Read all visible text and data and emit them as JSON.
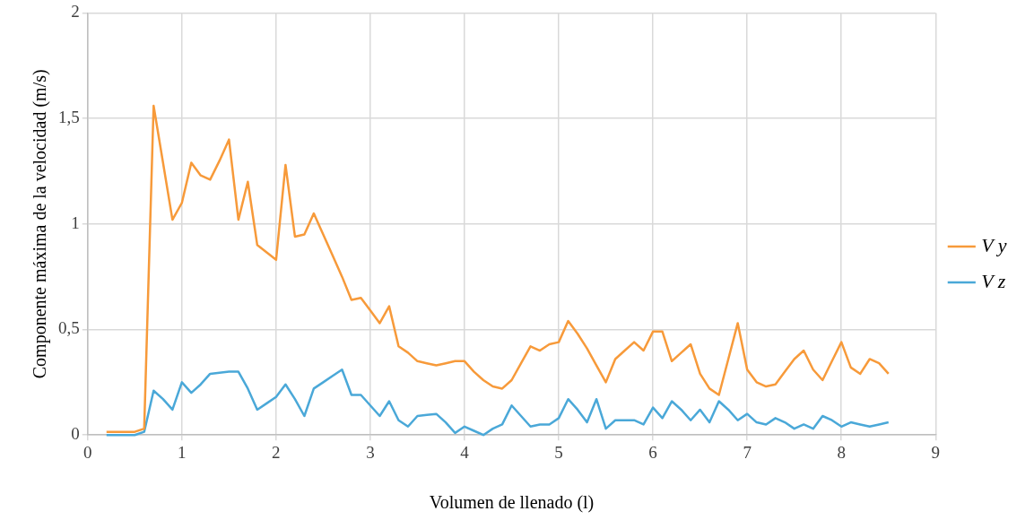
{
  "chart_data": {
    "type": "line",
    "xlabel": "Volumen de llenado (l)",
    "ylabel": "Componente máxima de la velocidad (m/s)",
    "x": [
      0.2,
      0.3,
      0.4,
      0.5,
      0.6,
      0.7,
      0.8,
      0.9,
      1.0,
      1.1,
      1.2,
      1.3,
      1.4,
      1.5,
      1.6,
      1.7,
      1.8,
      1.9,
      2.0,
      2.1,
      2.2,
      2.3,
      2.4,
      2.5,
      2.6,
      2.7,
      2.8,
      2.9,
      3.0,
      3.1,
      3.2,
      3.3,
      3.4,
      3.5,
      3.6,
      3.7,
      3.8,
      3.9,
      4.0,
      4.1,
      4.2,
      4.3,
      4.4,
      4.5,
      4.6,
      4.7,
      4.8,
      4.9,
      5.0,
      5.1,
      5.2,
      5.3,
      5.4,
      5.5,
      5.6,
      5.7,
      5.8,
      5.9,
      6.0,
      6.1,
      6.2,
      6.3,
      6.4,
      6.5,
      6.6,
      6.7,
      6.8,
      6.9,
      7.0,
      7.1,
      7.2,
      7.3,
      7.4,
      7.5,
      7.6,
      7.7,
      7.8,
      7.9,
      8.0,
      8.1,
      8.2,
      8.3,
      8.4,
      8.5
    ],
    "series": [
      {
        "name": "V y",
        "color": "#f79a3a",
        "values": [
          0.015,
          0.015,
          0.015,
          0.015,
          0.03,
          1.56,
          1.29,
          1.02,
          1.1,
          1.29,
          1.23,
          1.21,
          1.3,
          1.4,
          1.02,
          1.2,
          0.9,
          0.865,
          0.83,
          1.28,
          0.94,
          0.95,
          1.05,
          0.95,
          0.85,
          0.75,
          0.64,
          0.65,
          0.59,
          0.53,
          0.61,
          0.42,
          0.39,
          0.35,
          0.34,
          0.33,
          0.34,
          0.35,
          0.35,
          0.3,
          0.26,
          0.23,
          0.22,
          0.26,
          0.34,
          0.42,
          0.4,
          0.43,
          0.44,
          0.54,
          0.48,
          0.41,
          0.33,
          0.25,
          0.36,
          0.4,
          0.44,
          0.4,
          0.49,
          0.49,
          0.35,
          0.39,
          0.43,
          0.29,
          0.22,
          0.19,
          0.36,
          0.53,
          0.31,
          0.25,
          0.23,
          0.24,
          0.3,
          0.36,
          0.4,
          0.31,
          0.26,
          0.35,
          0.44,
          0.32,
          0.29,
          0.36,
          0.34,
          0.29
        ]
      },
      {
        "name": "V z",
        "color": "#4aa8d8",
        "values": [
          0,
          0,
          0,
          0,
          0.015,
          0.21,
          0.17,
          0.12,
          0.25,
          0.2,
          0.24,
          0.29,
          0.295,
          0.3,
          0.3,
          0.22,
          0.12,
          0.15,
          0.18,
          0.24,
          0.17,
          0.09,
          0.22,
          0.25,
          0.28,
          0.31,
          0.19,
          0.19,
          0.14,
          0.09,
          0.16,
          0.07,
          0.04,
          0.09,
          0.095,
          0.1,
          0.06,
          0.01,
          0.04,
          0.02,
          0.0,
          0.03,
          0.05,
          0.14,
          0.09,
          0.04,
          0.05,
          0.05,
          0.08,
          0.17,
          0.12,
          0.06,
          0.17,
          0.03,
          0.07,
          0.07,
          0.07,
          0.05,
          0.13,
          0.08,
          0.16,
          0.12,
          0.07,
          0.12,
          0.06,
          0.16,
          0.12,
          0.07,
          0.1,
          0.06,
          0.05,
          0.08,
          0.06,
          0.03,
          0.05,
          0.03,
          0.09,
          0.07,
          0.04,
          0.06,
          0.05,
          0.04,
          0.05,
          0.06
        ]
      }
    ],
    "xlim": [
      0,
      9
    ],
    "xticks": [
      0,
      1,
      2,
      3,
      4,
      5,
      6,
      7,
      8,
      9
    ],
    "ylim": [
      0,
      2
    ],
    "yticks": [
      0,
      {
        "value": 0.5,
        "label": "0,5"
      },
      1,
      {
        "value": 1.5,
        "label": "1,5"
      },
      2
    ],
    "grid": true,
    "legend": "right",
    "marker": "none",
    "line_style": "solid"
  }
}
